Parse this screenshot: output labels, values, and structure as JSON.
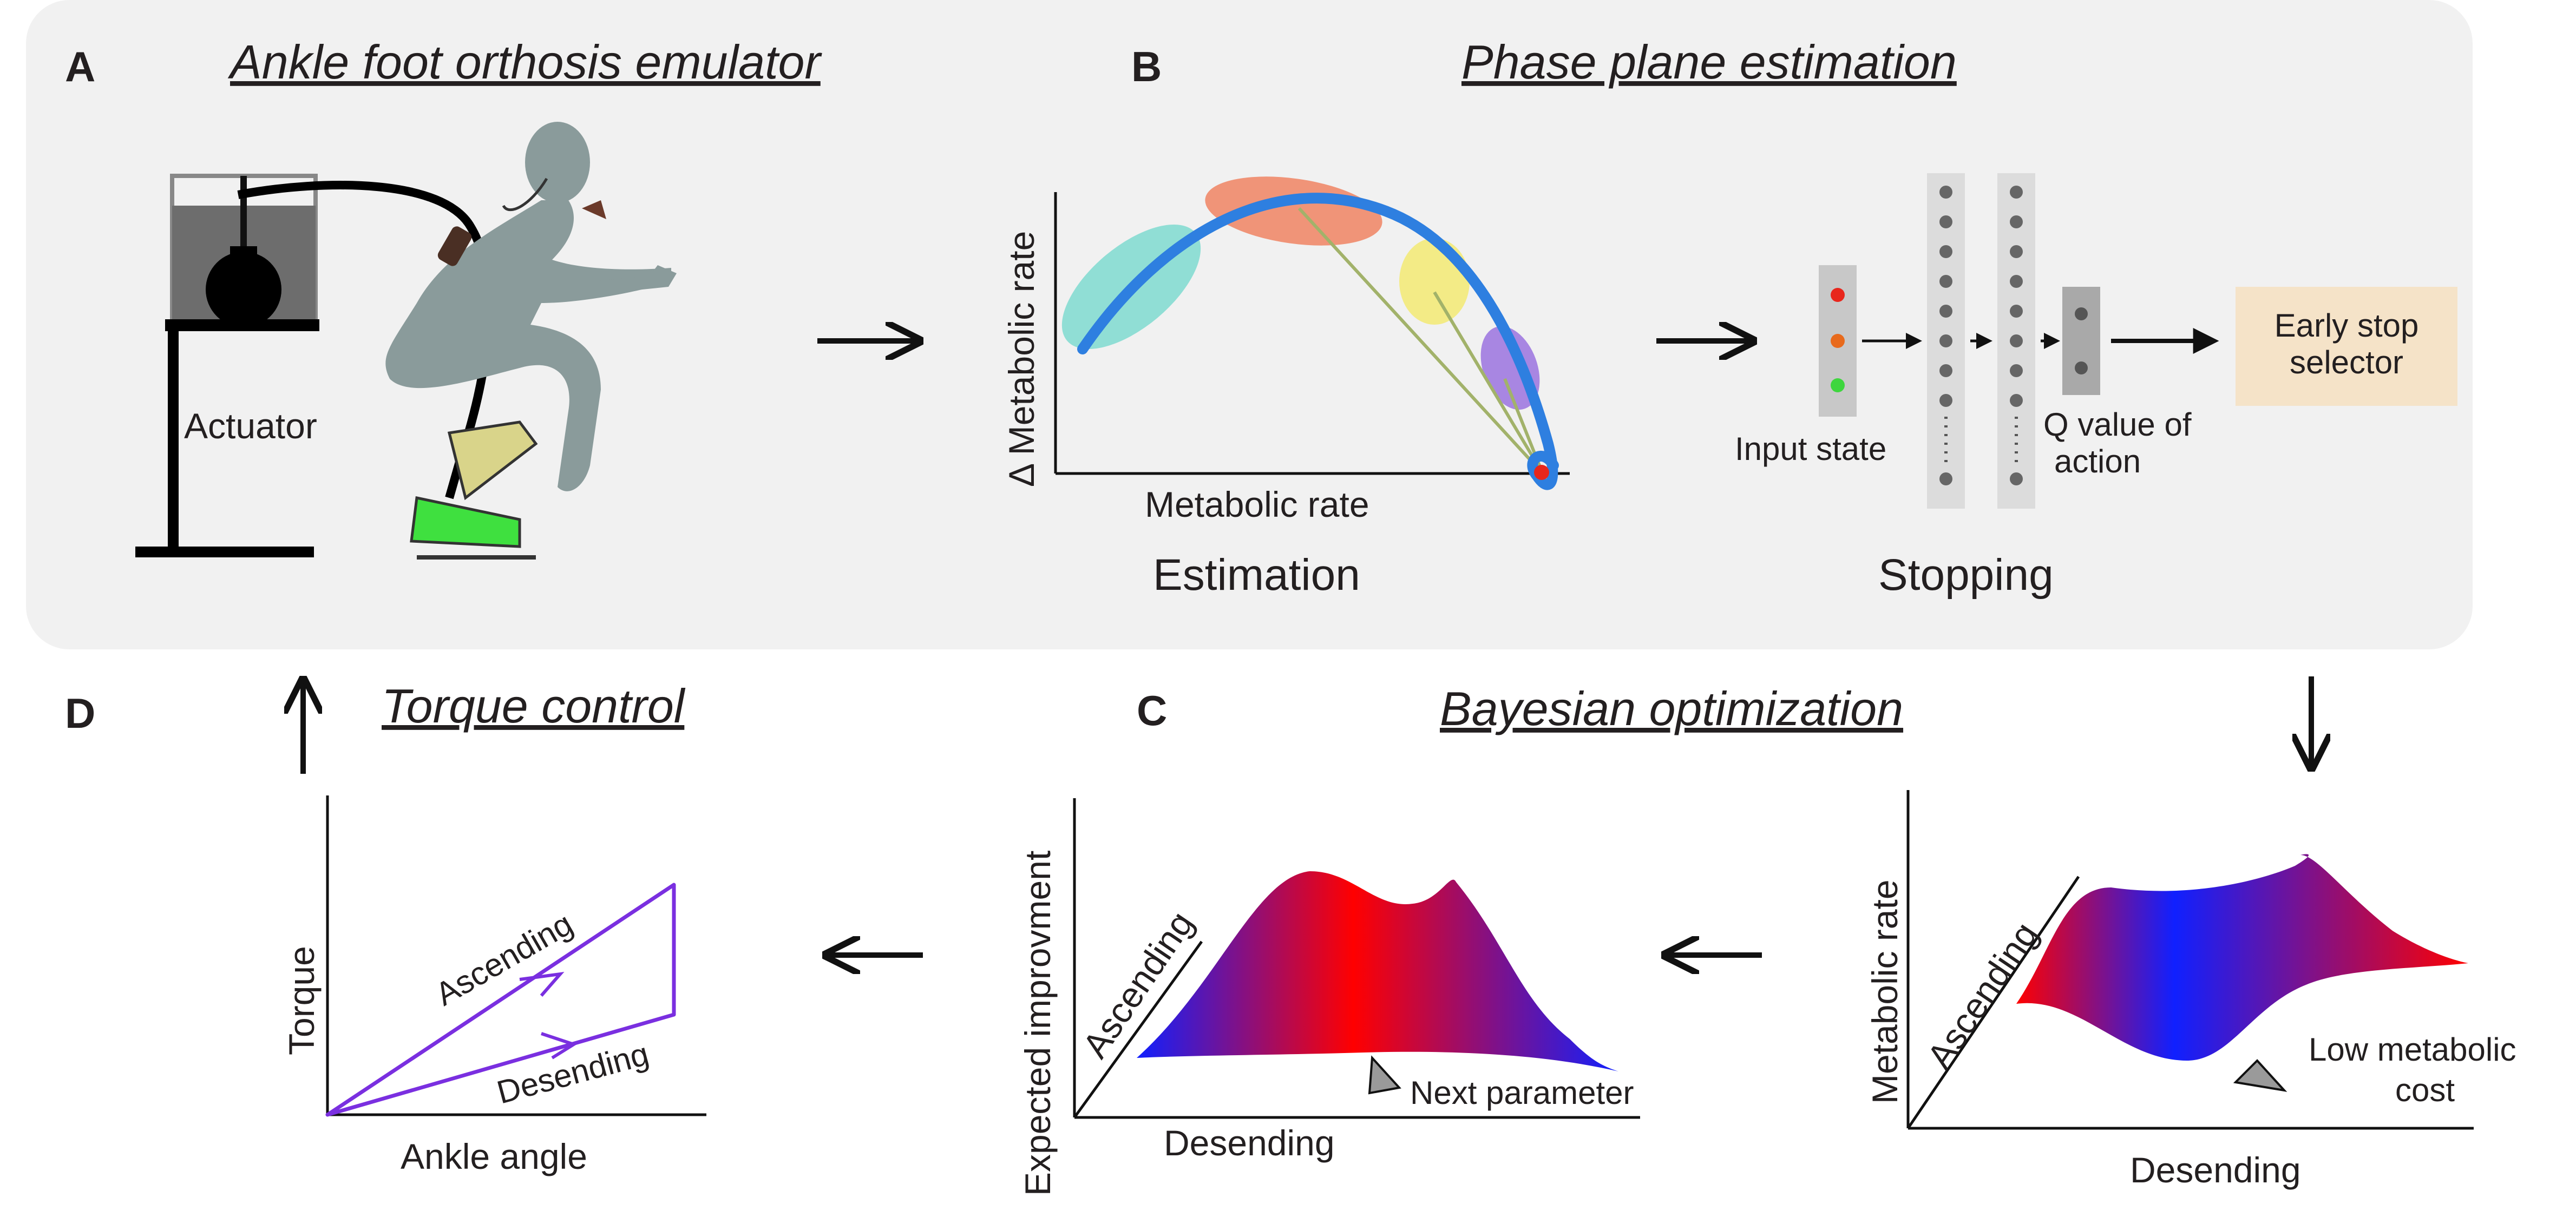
{
  "panels": {
    "a": {
      "label": "A",
      "title": "Ankle foot orthosis emulator",
      "actuator_label": "Actuator"
    },
    "b": {
      "label": "B",
      "title": "Phase plane estimation",
      "y_axis": "Δ Metabolic  rate",
      "x_axis": "Metabolic rate",
      "estimation_caption": "Estimation",
      "stopping_caption": "Stopping",
      "input_state_label": "Input state",
      "q_value_label_line1": "Q value of",
      "q_value_label_line2": "action",
      "early_stop_line1": "Early stop",
      "early_stop_line2": "selector"
    },
    "c": {
      "label": "C",
      "title": "Bayesian optimization",
      "ei_y_axis": "Expected improvment",
      "ei_depth_axis": "Ascending",
      "ei_x_axis": "Desending",
      "ei_pointer_label": "Next parameter",
      "met_y_axis": "Metabolic rate",
      "met_depth_axis": "Ascending",
      "met_x_axis": "Desending",
      "met_pointer_line1": "Low metabolic",
      "met_pointer_line2": "cost"
    },
    "d": {
      "label": "D",
      "title": "Torque control",
      "y_axis": "Torque",
      "x_axis": "Ankle angle",
      "ascending_label": "Ascending",
      "descending_label": "Desending"
    }
  },
  "colors": {
    "background_panel": "#f1f1f1",
    "curve_blue": "#2e7fe0",
    "loop_purple": "#7a2fe0",
    "early_stop_box": "#f5e3c8",
    "state_red": "#e8261c",
    "state_orange": "#e86a1c",
    "state_green": "#3ed63e",
    "surface_red": "#ff0000",
    "surface_blue": "#1020ff"
  }
}
